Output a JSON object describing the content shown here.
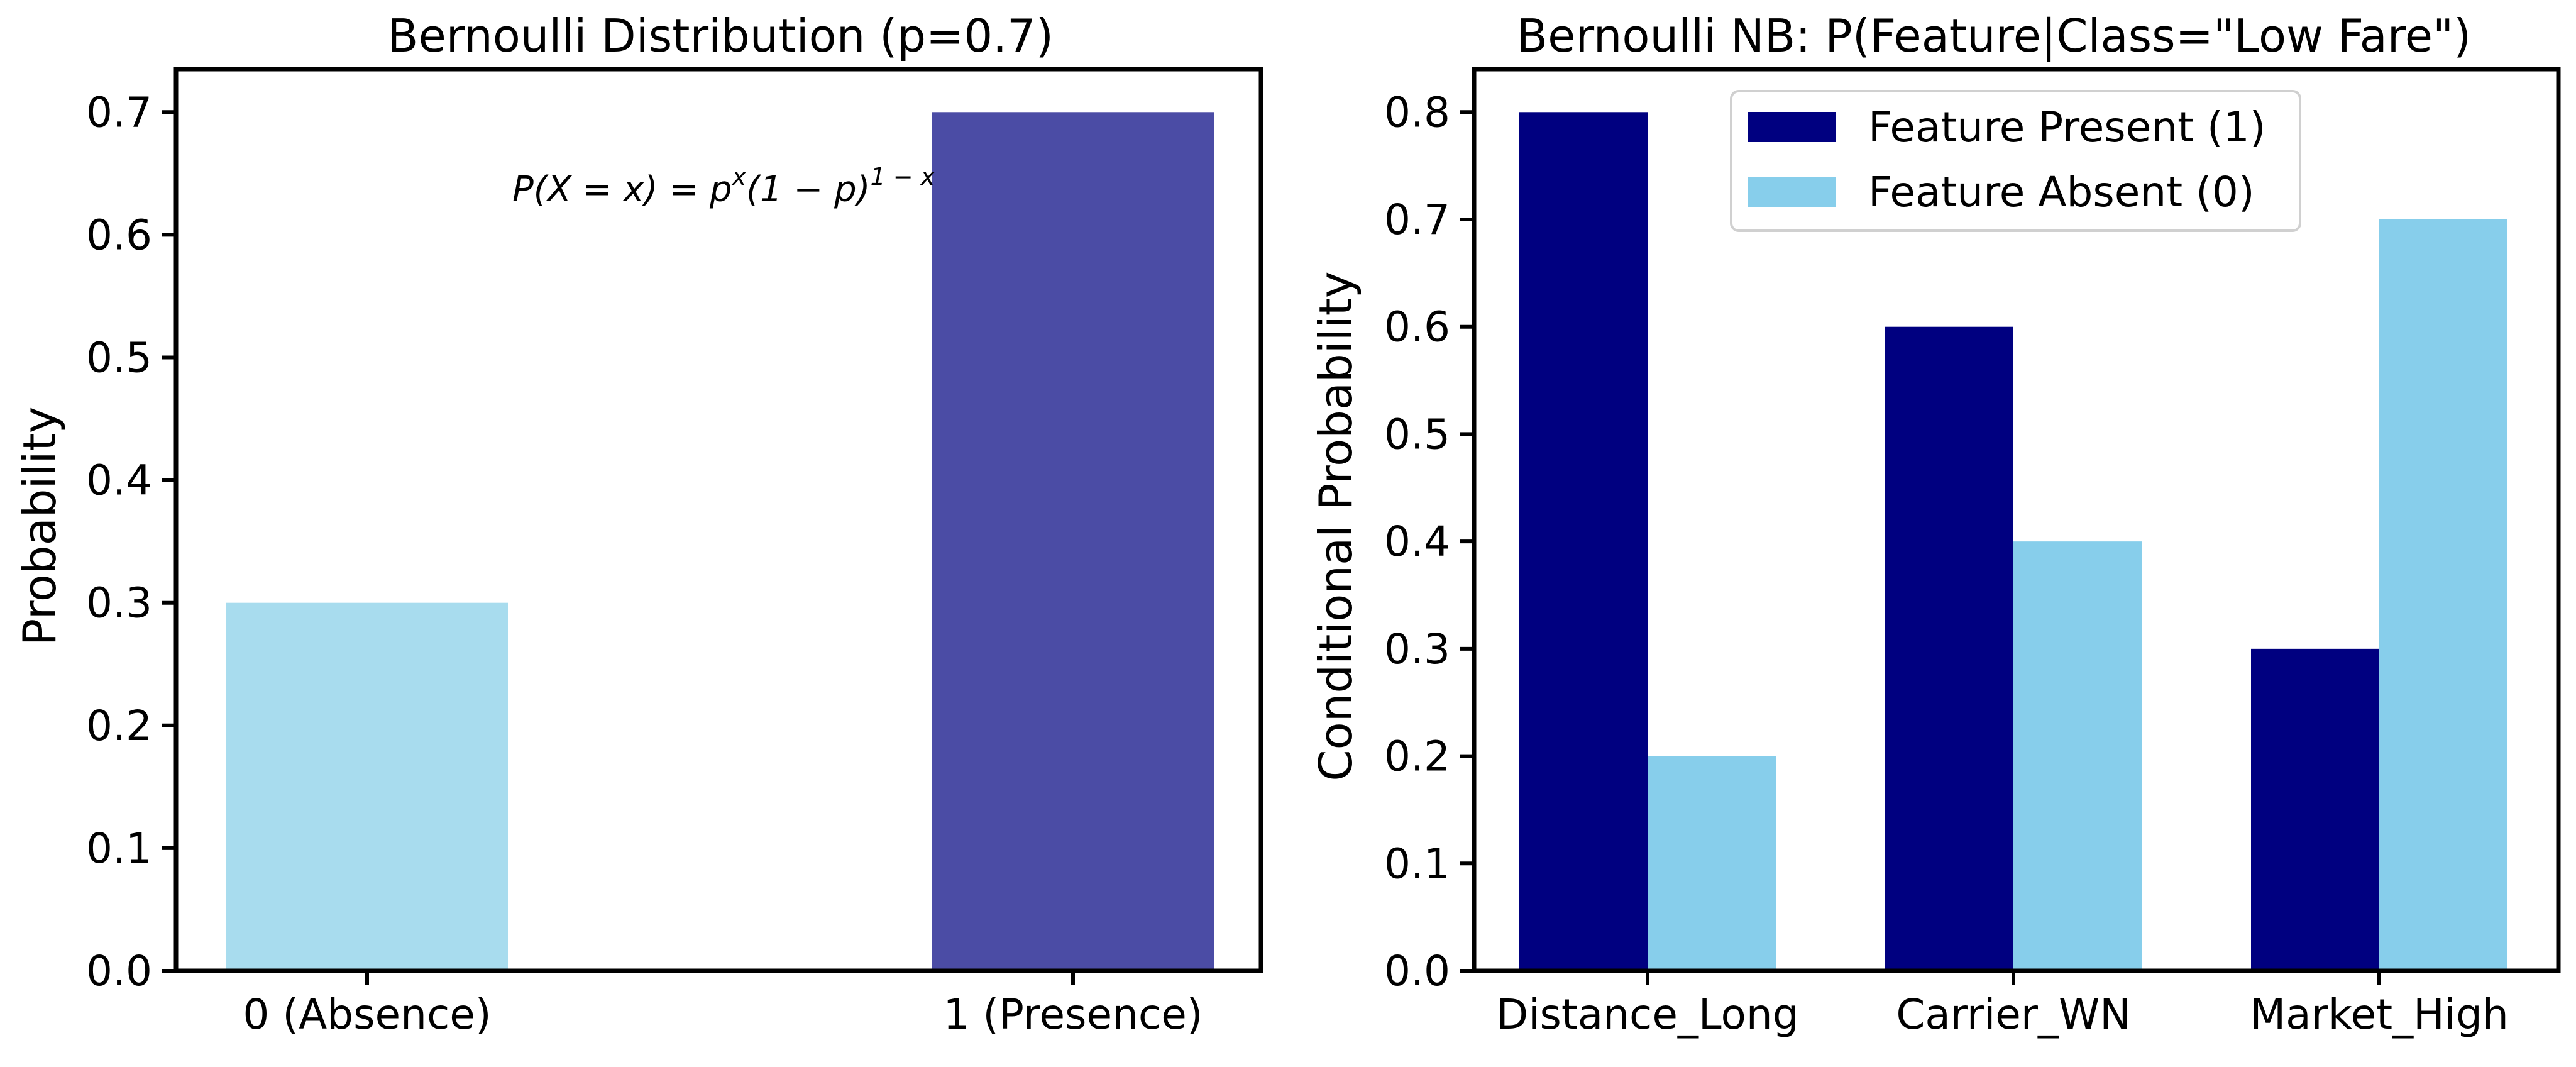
{
  "chart_data": [
    {
      "type": "bar",
      "title": "Bernoulli Distribution (p=0.7)",
      "xlabel": "",
      "ylabel": "Probability",
      "categories": [
        "0 (Absence)",
        "1 (Presence)"
      ],
      "values": [
        0.3,
        0.7
      ],
      "colors": [
        "#a8dcee",
        "#4b4ca5"
      ],
      "ylim": [
        0,
        0.735
      ],
      "yticks": [
        "0.0",
        "0.1",
        "0.2",
        "0.3",
        "0.4",
        "0.5",
        "0.6",
        "0.7"
      ],
      "annotation": "P(X = x) = p",
      "annotation_sup1": "x",
      "annotation_mid": "(1 − p)",
      "annotation_sup2": "1 − x",
      "grid": false
    },
    {
      "type": "bar",
      "title": "Bernoulli NB: P(Feature|Class=\"Low Fare\")",
      "xlabel": "",
      "ylabel": "Conditional Probability",
      "categories": [
        "Distance_Long",
        "Carrier_WN",
        "Market_High"
      ],
      "series": [
        {
          "name": "Feature Present (1)",
          "values": [
            0.8,
            0.6,
            0.3
          ],
          "color": "#000080"
        },
        {
          "name": "Feature Absent (0)",
          "values": [
            0.2,
            0.4,
            0.7
          ],
          "color": "#87ceeb"
        }
      ],
      "ylim": [
        0,
        0.84
      ],
      "yticks": [
        "0.0",
        "0.1",
        "0.2",
        "0.3",
        "0.4",
        "0.5",
        "0.6",
        "0.7",
        "0.8"
      ],
      "legend_position": "top-center",
      "grid": false
    }
  ]
}
